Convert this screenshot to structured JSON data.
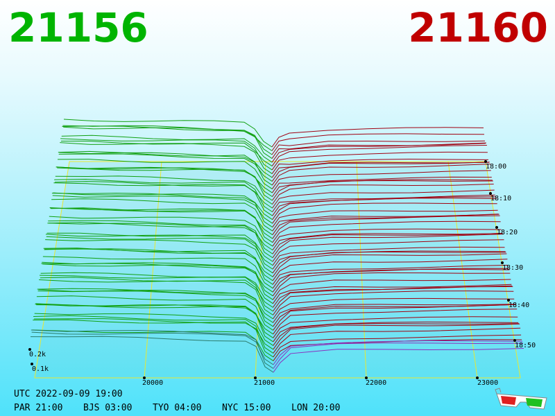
{
  "header": {
    "bid": "21156",
    "ask": "21160"
  },
  "price_labels": [
    "20000",
    "21000",
    "22000",
    "23000"
  ],
  "time_labels": [
    "18:00",
    "18:10",
    "18:20",
    "18:30",
    "18:40",
    "18:50"
  ],
  "volume_labels": [
    "0.2k",
    "0.1k"
  ],
  "footer": {
    "utc": "UTC 2022-09-09 19:00",
    "cities": [
      "PAR 21:00",
      "BJS 03:00",
      "TYO 04:00",
      "NYC 15:00",
      "LON 20:00"
    ]
  }
}
